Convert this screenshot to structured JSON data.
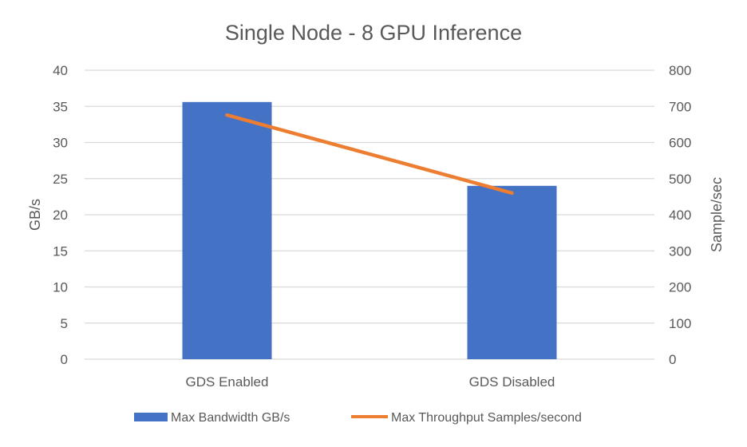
{
  "chart_data": {
    "type": "bar+line",
    "title": "Single Node - 8 GPU Inference",
    "categories": [
      "GDS Enabled",
      "GDS Disabled"
    ],
    "series": [
      {
        "name": "Max Bandwidth GB/s",
        "type": "bar",
        "axis": "left",
        "values": [
          35.6,
          24.0
        ],
        "color": "#4472C4"
      },
      {
        "name": "Max Throughput Samples/second",
        "type": "line",
        "axis": "right",
        "values": [
          676,
          460
        ],
        "color": "#ED7D31"
      }
    ],
    "ylabel": "GB/s",
    "ylim": [
      0,
      40
    ],
    "yticks": [
      "0",
      "5",
      "10",
      "15",
      "20",
      "25",
      "30",
      "35",
      "40"
    ],
    "y2label": "Sample/sec",
    "y2lim": [
      0,
      800
    ],
    "y2ticks": [
      "0",
      "100",
      "200",
      "300",
      "400",
      "500",
      "600",
      "700",
      "800"
    ],
    "grid": true,
    "legend": "bottom"
  }
}
